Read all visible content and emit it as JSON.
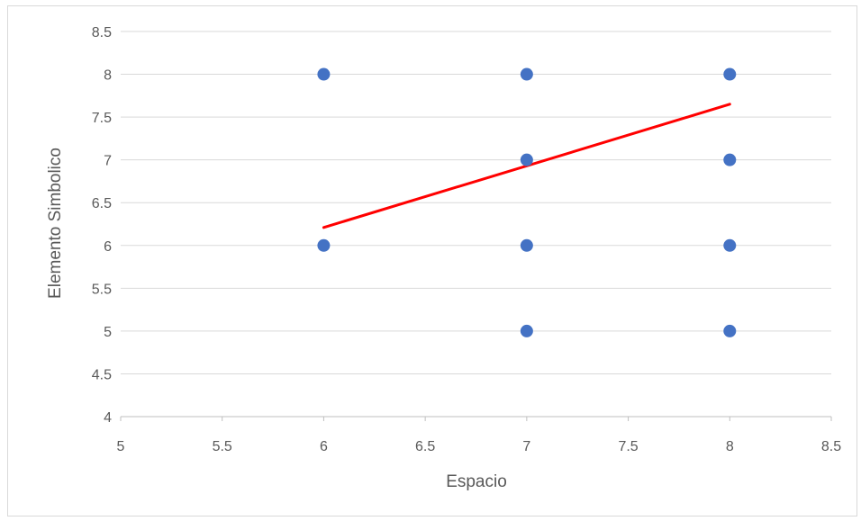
{
  "chart_data": {
    "type": "scatter",
    "title": "",
    "xlabel": "Espacio",
    "ylabel": "Elemento Simbolico",
    "xlim": [
      5,
      8.5
    ],
    "ylim": [
      4,
      8.5
    ],
    "x_ticks": [
      "5",
      "5.5",
      "6",
      "6.5",
      "7",
      "7.5",
      "8",
      "8.5"
    ],
    "y_ticks": [
      "4",
      "4.5",
      "5",
      "5.5",
      "6",
      "6.5",
      "7",
      "7.5",
      "8",
      "8.5"
    ],
    "grid": "horizontal",
    "legend": "none",
    "series": [
      {
        "points": [
          {
            "x": 6,
            "y": 8
          },
          {
            "x": 6,
            "y": 6
          },
          {
            "x": 7,
            "y": 8
          },
          {
            "x": 7,
            "y": 7
          },
          {
            "x": 7,
            "y": 6
          },
          {
            "x": 7,
            "y": 5
          },
          {
            "x": 8,
            "y": 8
          },
          {
            "x": 8,
            "y": 7
          },
          {
            "x": 8,
            "y": 6
          },
          {
            "x": 8,
            "y": 5
          }
        ],
        "color": "#4472c4"
      }
    ],
    "trendline": {
      "type": "linear",
      "color": "#ff0000",
      "x": [
        6,
        8
      ],
      "y": [
        6.21,
        7.65
      ]
    }
  }
}
